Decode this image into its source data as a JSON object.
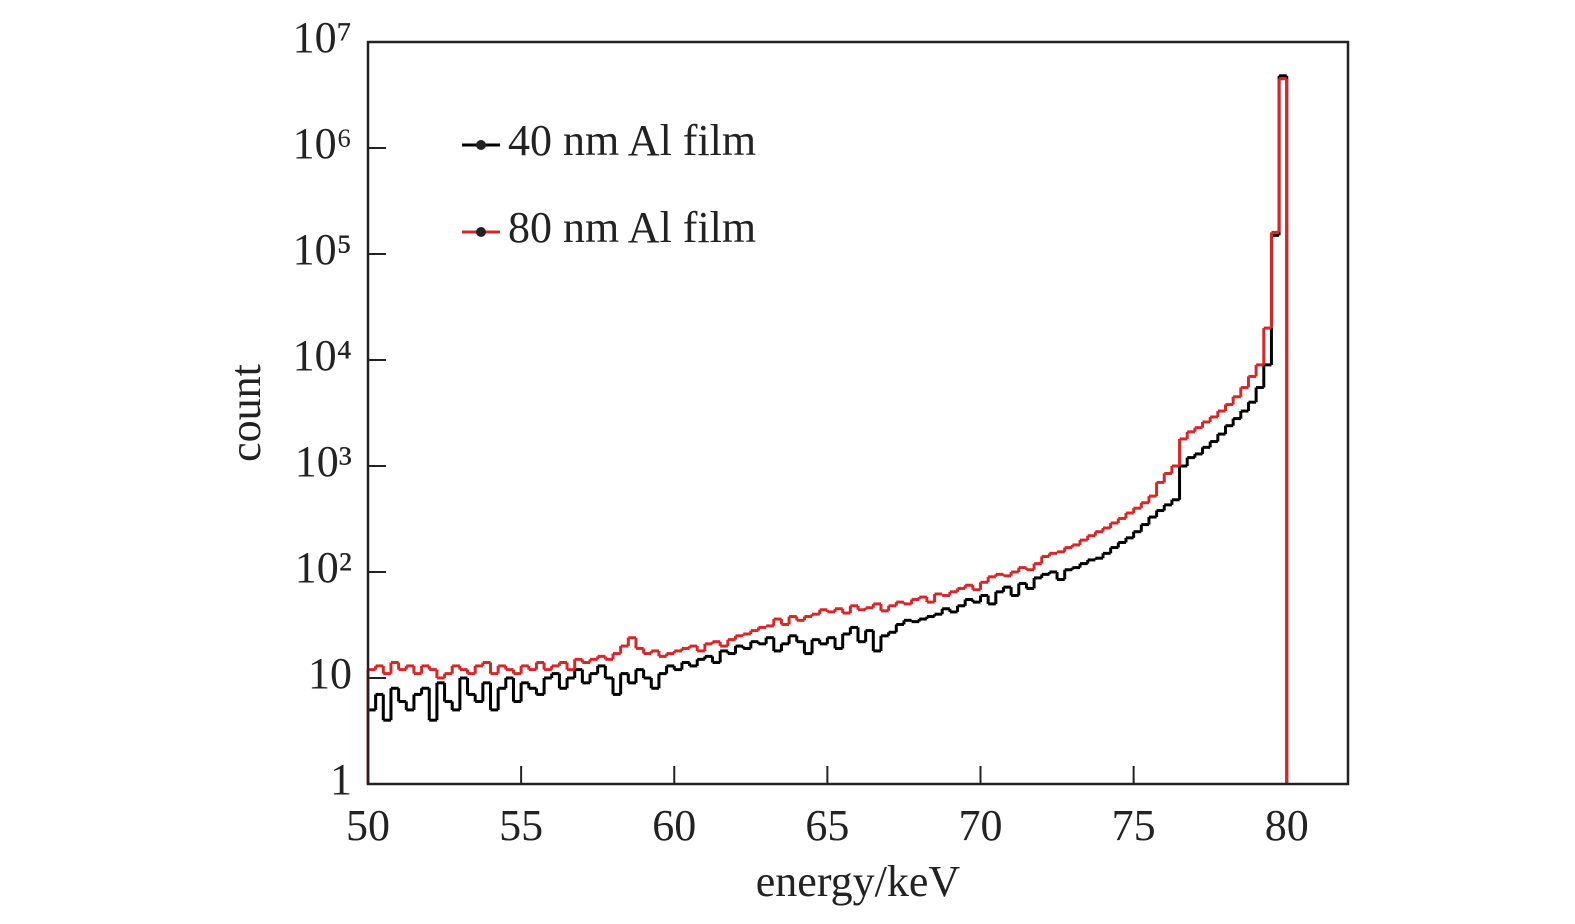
{
  "chart_data": {
    "type": "histogram",
    "xlabel": "energy/keV",
    "ylabel": "count",
    "bins": [
      50,
      50.25,
      50.5,
      50.75,
      51,
      51.25,
      51.5,
      51.75,
      52,
      52.25,
      52.5,
      52.75,
      53,
      53.25,
      53.5,
      53.75,
      54,
      54.25,
      54.5,
      54.75,
      55,
      55.25,
      55.5,
      55.75,
      56,
      56.25,
      56.5,
      56.75,
      57,
      57.25,
      57.5,
      57.75,
      58,
      58.25,
      58.5,
      58.75,
      59,
      59.25,
      59.5,
      59.75,
      60,
      60.25,
      60.5,
      60.75,
      61,
      61.25,
      61.5,
      61.75,
      62,
      62.25,
      62.5,
      62.75,
      63,
      63.25,
      63.5,
      63.75,
      64,
      64.25,
      64.5,
      64.75,
      65,
      65.25,
      65.5,
      65.75,
      66,
      66.25,
      66.5,
      66.75,
      67,
      67.25,
      67.5,
      67.75,
      68,
      68.25,
      68.5,
      68.75,
      69,
      69.25,
      69.5,
      69.75,
      70,
      70.25,
      70.5,
      70.75,
      71,
      71.25,
      71.5,
      71.75,
      72,
      72.25,
      72.5,
      72.75,
      73,
      73.25,
      73.5,
      73.75,
      74,
      74.25,
      74.5,
      74.75,
      75,
      75.25,
      75.5,
      75.75,
      76,
      76.25,
      76.5,
      76.75,
      77,
      77.25,
      77.5,
      77.75,
      78,
      78.25,
      78.5,
      78.75,
      79,
      79.25,
      79.5,
      79.75,
      80
    ],
    "series": [
      {
        "name": "40 nm Al film",
        "color": "#000000",
        "values": [
          5,
          7,
          4,
          8,
          6,
          5,
          7,
          8,
          4,
          9,
          6,
          5,
          10,
          7,
          6,
          9,
          5,
          8,
          10,
          6,
          9,
          8,
          7,
          10,
          11,
          8,
          10,
          12,
          9,
          11,
          13,
          10,
          7,
          11,
          9,
          12,
          10,
          8,
          11,
          13,
          12,
          14,
          13,
          15,
          16,
          14,
          18,
          17,
          20,
          19,
          22,
          21,
          24,
          18,
          21,
          25,
          22,
          17,
          23,
          21,
          24,
          19,
          26,
          30,
          22,
          28,
          18,
          25,
          27,
          32,
          35,
          34,
          36,
          38,
          40,
          45,
          42,
          48,
          55,
          52,
          60,
          50,
          65,
          72,
          60,
          78,
          70,
          88,
          95,
          100,
          85,
          105,
          110,
          120,
          130,
          135,
          150,
          170,
          190,
          210,
          240,
          280,
          330,
          380,
          430,
          480,
          1000,
          1200,
          1300,
          1500,
          1700,
          2000,
          2400,
          2800,
          3300,
          4000,
          5500,
          9000,
          150000,
          4800000
        ]
      },
      {
        "name": "80 nm Al film",
        "color": "#d62728",
        "values": [
          12,
          13,
          11,
          14,
          12,
          13,
          11,
          13,
          12,
          10,
          11,
          13,
          12,
          11,
          13,
          14,
          11,
          13,
          12,
          11,
          13,
          12,
          14,
          12,
          13,
          14,
          12,
          15,
          14,
          15,
          16,
          15,
          17,
          20,
          24,
          19,
          17,
          18,
          16,
          17,
          18,
          19,
          20,
          18,
          21,
          22,
          20,
          23,
          25,
          26,
          28,
          30,
          31,
          36,
          32,
          38,
          35,
          38,
          40,
          44,
          42,
          45,
          41,
          48,
          44,
          46,
          50,
          43,
          48,
          52,
          50,
          55,
          58,
          52,
          62,
          60,
          65,
          70,
          75,
          68,
          80,
          90,
          95,
          92,
          100,
          110,
          105,
          120,
          140,
          150,
          155,
          170,
          180,
          200,
          220,
          240,
          260,
          290,
          320,
          360,
          400,
          450,
          520,
          700,
          850,
          1000,
          1800,
          2100,
          2300,
          2600,
          2900,
          3300,
          3800,
          4500,
          5500,
          7000,
          9000,
          20000,
          160000,
          4500000
        ]
      }
    ],
    "xlim": [
      50,
      82
    ],
    "xticks": [
      50,
      55,
      60,
      65,
      70,
      75,
      80
    ],
    "ylim": [
      1,
      10000000
    ],
    "log_y": true,
    "yticks": [
      1,
      10,
      {
        "value": 100,
        "label": "10²"
      },
      {
        "value": 1000,
        "label": "10³"
      },
      {
        "value": 10000,
        "label": "10⁴"
      },
      {
        "value": 100000,
        "label": "10⁵"
      },
      {
        "value": 1000000,
        "label": "10⁶"
      },
      {
        "value": 10000000,
        "label": "10⁷"
      }
    ],
    "legend": "upper left"
  }
}
